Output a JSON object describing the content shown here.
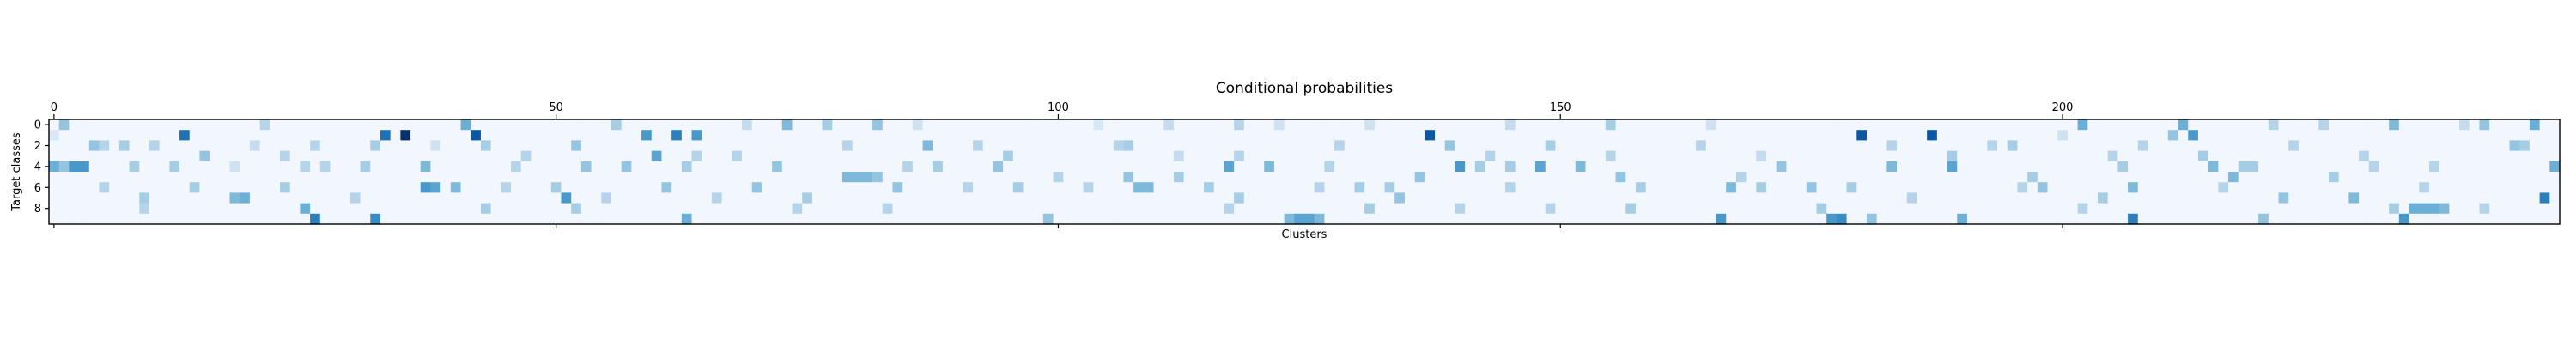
{
  "chart_data": {
    "type": "heatmap",
    "title": "Conditional probabilities",
    "xlabel": "Clusters",
    "ylabel": "Target classes",
    "n_rows": 10,
    "n_cols": 250,
    "xlim": [
      0,
      249
    ],
    "ylim": [
      0,
      9
    ],
    "x_ticks": [
      0,
      50,
      100,
      150,
      200
    ],
    "x_tick_labels": [
      "0",
      "50",
      "100",
      "150",
      "200"
    ],
    "x_tick_position": "top",
    "y_ticks": [
      0,
      2,
      4,
      6,
      8
    ],
    "y_tick_labels": [
      "0",
      "2",
      "4",
      "6",
      "8"
    ],
    "colormap": "Blues",
    "color_low": "#f7fbff",
    "color_high": "#08306b",
    "value_range": [
      0,
      1
    ],
    "background_value": 0.03,
    "grid": false,
    "cells": [
      [
        0,
        1,
        0.15
      ],
      [
        1,
        0,
        0.4
      ],
      [
        13,
        1,
        0.75
      ],
      [
        21,
        0,
        0.3
      ],
      [
        33,
        1,
        0.75
      ],
      [
        35,
        1,
        1.0
      ],
      [
        41,
        0,
        0.5
      ],
      [
        42,
        1,
        0.85
      ],
      [
        56,
        0,
        0.35
      ],
      [
        59,
        1,
        0.6
      ],
      [
        62,
        1,
        0.7
      ],
      [
        64,
        1,
        0.6
      ],
      [
        69,
        0,
        0.25
      ],
      [
        73,
        0,
        0.45
      ],
      [
        77,
        0,
        0.35
      ],
      [
        82,
        0,
        0.4
      ],
      [
        86,
        0,
        0.2
      ],
      [
        104,
        0,
        0.15
      ],
      [
        111,
        0,
        0.25
      ],
      [
        118,
        0,
        0.3
      ],
      [
        122,
        0,
        0.2
      ],
      [
        131,
        0,
        0.2
      ],
      [
        137,
        1,
        0.85
      ],
      [
        145,
        0,
        0.25
      ],
      [
        155,
        0,
        0.35
      ],
      [
        165,
        0,
        0.2
      ],
      [
        180,
        1,
        0.85
      ],
      [
        187,
        1,
        0.85
      ],
      [
        200,
        1,
        0.2
      ],
      [
        202,
        0,
        0.5
      ],
      [
        211,
        1,
        0.4
      ],
      [
        212,
        0,
        0.5
      ],
      [
        213,
        1,
        0.6
      ],
      [
        221,
        0,
        0.3
      ],
      [
        226,
        0,
        0.3
      ],
      [
        233,
        0,
        0.45
      ],
      [
        240,
        0,
        0.25
      ],
      [
        242,
        0,
        0.4
      ],
      [
        247,
        0,
        0.5
      ],
      [
        4,
        2,
        0.4
      ],
      [
        5,
        2,
        0.3
      ],
      [
        7,
        2,
        0.35
      ],
      [
        10,
        2,
        0.3
      ],
      [
        15,
        3,
        0.4
      ],
      [
        20,
        2,
        0.25
      ],
      [
        23,
        3,
        0.3
      ],
      [
        26,
        2,
        0.3
      ],
      [
        32,
        2,
        0.35
      ],
      [
        38,
        2,
        0.2
      ],
      [
        43,
        2,
        0.35
      ],
      [
        47,
        3,
        0.3
      ],
      [
        52,
        2,
        0.4
      ],
      [
        60,
        3,
        0.55
      ],
      [
        64,
        3,
        0.3
      ],
      [
        68,
        3,
        0.3
      ],
      [
        79,
        2,
        0.3
      ],
      [
        87,
        2,
        0.45
      ],
      [
        92,
        2,
        0.3
      ],
      [
        95,
        3,
        0.35
      ],
      [
        106,
        2,
        0.3
      ],
      [
        107,
        2,
        0.35
      ],
      [
        112,
        3,
        0.25
      ],
      [
        118,
        3,
        0.3
      ],
      [
        128,
        2,
        0.3
      ],
      [
        139,
        2,
        0.4
      ],
      [
        143,
        3,
        0.3
      ],
      [
        149,
        2,
        0.35
      ],
      [
        155,
        3,
        0.3
      ],
      [
        164,
        2,
        0.3
      ],
      [
        170,
        3,
        0.25
      ],
      [
        183,
        2,
        0.3
      ],
      [
        189,
        3,
        0.35
      ],
      [
        193,
        2,
        0.3
      ],
      [
        195,
        2,
        0.35
      ],
      [
        205,
        3,
        0.3
      ],
      [
        208,
        2,
        0.3
      ],
      [
        214,
        3,
        0.35
      ],
      [
        223,
        2,
        0.3
      ],
      [
        230,
        3,
        0.3
      ],
      [
        245,
        2,
        0.4
      ],
      [
        246,
        2,
        0.35
      ],
      [
        0,
        4,
        0.5
      ],
      [
        1,
        4,
        0.4
      ],
      [
        2,
        4,
        0.6
      ],
      [
        3,
        4,
        0.6
      ],
      [
        8,
        4,
        0.35
      ],
      [
        12,
        4,
        0.35
      ],
      [
        18,
        4,
        0.2
      ],
      [
        25,
        4,
        0.3
      ],
      [
        27,
        4,
        0.3
      ],
      [
        31,
        4,
        0.35
      ],
      [
        37,
        4,
        0.45
      ],
      [
        46,
        4,
        0.3
      ],
      [
        53,
        4,
        0.4
      ],
      [
        57,
        4,
        0.4
      ],
      [
        63,
        4,
        0.35
      ],
      [
        72,
        4,
        0.4
      ],
      [
        79,
        5,
        0.45
      ],
      [
        80,
        5,
        0.45
      ],
      [
        81,
        5,
        0.45
      ],
      [
        82,
        5,
        0.4
      ],
      [
        85,
        4,
        0.3
      ],
      [
        88,
        4,
        0.35
      ],
      [
        94,
        4,
        0.4
      ],
      [
        100,
        5,
        0.3
      ],
      [
        107,
        5,
        0.4
      ],
      [
        112,
        5,
        0.35
      ],
      [
        117,
        4,
        0.55
      ],
      [
        121,
        4,
        0.45
      ],
      [
        127,
        4,
        0.3
      ],
      [
        136,
        5,
        0.4
      ],
      [
        140,
        4,
        0.6
      ],
      [
        142,
        4,
        0.35
      ],
      [
        145,
        4,
        0.35
      ],
      [
        148,
        4,
        0.55
      ],
      [
        152,
        4,
        0.45
      ],
      [
        156,
        5,
        0.4
      ],
      [
        168,
        5,
        0.3
      ],
      [
        172,
        4,
        0.4
      ],
      [
        183,
        4,
        0.45
      ],
      [
        189,
        4,
        0.55
      ],
      [
        197,
        5,
        0.35
      ],
      [
        206,
        4,
        0.35
      ],
      [
        215,
        4,
        0.45
      ],
      [
        217,
        5,
        0.45
      ],
      [
        218,
        4,
        0.35
      ],
      [
        219,
        4,
        0.35
      ],
      [
        227,
        5,
        0.35
      ],
      [
        231,
        4,
        0.3
      ],
      [
        237,
        4,
        0.3
      ],
      [
        249,
        4,
        0.5
      ],
      [
        5,
        6,
        0.3
      ],
      [
        9,
        7,
        0.35
      ],
      [
        14,
        6,
        0.35
      ],
      [
        18,
        7,
        0.45
      ],
      [
        19,
        7,
        0.5
      ],
      [
        23,
        6,
        0.35
      ],
      [
        30,
        7,
        0.3
      ],
      [
        37,
        6,
        0.6
      ],
      [
        38,
        6,
        0.55
      ],
      [
        40,
        6,
        0.45
      ],
      [
        45,
        6,
        0.3
      ],
      [
        50,
        6,
        0.35
      ],
      [
        51,
        7,
        0.6
      ],
      [
        55,
        7,
        0.3
      ],
      [
        61,
        6,
        0.4
      ],
      [
        66,
        7,
        0.3
      ],
      [
        70,
        6,
        0.4
      ],
      [
        75,
        7,
        0.35
      ],
      [
        84,
        6,
        0.4
      ],
      [
        91,
        6,
        0.3
      ],
      [
        96,
        6,
        0.35
      ],
      [
        103,
        6,
        0.3
      ],
      [
        108,
        6,
        0.45
      ],
      [
        109,
        6,
        0.45
      ],
      [
        115,
        6,
        0.35
      ],
      [
        118,
        7,
        0.35
      ],
      [
        126,
        6,
        0.3
      ],
      [
        130,
        6,
        0.35
      ],
      [
        133,
        6,
        0.35
      ],
      [
        134,
        7,
        0.4
      ],
      [
        145,
        6,
        0.3
      ],
      [
        158,
        6,
        0.35
      ],
      [
        167,
        6,
        0.45
      ],
      [
        170,
        6,
        0.35
      ],
      [
        175,
        6,
        0.4
      ],
      [
        179,
        6,
        0.35
      ],
      [
        185,
        7,
        0.3
      ],
      [
        196,
        6,
        0.3
      ],
      [
        198,
        6,
        0.4
      ],
      [
        204,
        7,
        0.35
      ],
      [
        207,
        6,
        0.45
      ],
      [
        216,
        6,
        0.3
      ],
      [
        222,
        7,
        0.4
      ],
      [
        229,
        7,
        0.45
      ],
      [
        236,
        6,
        0.3
      ],
      [
        248,
        7,
        0.7
      ],
      [
        9,
        8,
        0.3
      ],
      [
        25,
        8,
        0.5
      ],
      [
        26,
        9,
        0.7
      ],
      [
        32,
        9,
        0.65
      ],
      [
        43,
        8,
        0.35
      ],
      [
        52,
        8,
        0.35
      ],
      [
        63,
        9,
        0.5
      ],
      [
        74,
        8,
        0.3
      ],
      [
        83,
        8,
        0.3
      ],
      [
        99,
        9,
        0.4
      ],
      [
        117,
        8,
        0.3
      ],
      [
        123,
        9,
        0.45
      ],
      [
        124,
        9,
        0.55
      ],
      [
        125,
        9,
        0.55
      ],
      [
        126,
        9,
        0.45
      ],
      [
        131,
        8,
        0.35
      ],
      [
        140,
        8,
        0.3
      ],
      [
        149,
        8,
        0.3
      ],
      [
        157,
        8,
        0.35
      ],
      [
        166,
        9,
        0.6
      ],
      [
        176,
        8,
        0.35
      ],
      [
        177,
        9,
        0.6
      ],
      [
        178,
        9,
        0.65
      ],
      [
        181,
        9,
        0.4
      ],
      [
        190,
        9,
        0.5
      ],
      [
        202,
        8,
        0.3
      ],
      [
        207,
        9,
        0.7
      ],
      [
        220,
        9,
        0.4
      ],
      [
        233,
        8,
        0.35
      ],
      [
        234,
        9,
        0.6
      ],
      [
        235,
        8,
        0.5
      ],
      [
        236,
        8,
        0.5
      ],
      [
        237,
        8,
        0.5
      ],
      [
        238,
        8,
        0.45
      ],
      [
        242,
        8,
        0.3
      ]
    ]
  }
}
